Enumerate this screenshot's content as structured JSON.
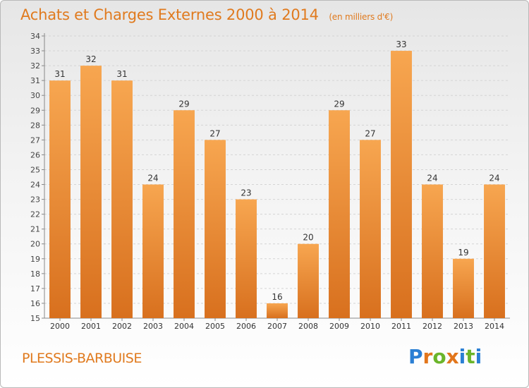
{
  "header": {
    "title": "Achats et Charges Externes 2000 à 2014",
    "subtitle": "(en milliers d'€)"
  },
  "footer": {
    "place": "PLESSIS-BARBUISE",
    "logo": {
      "letters": [
        "P",
        "r",
        "o",
        "x",
        "i",
        "t",
        "i"
      ],
      "colors": [
        "#2a7fd4",
        "#e2761b",
        "#6bb52a",
        "#e2761b",
        "#2a7fd4",
        "#6bb52a",
        "#2a7fd4"
      ]
    }
  },
  "colors": {
    "bar_light": "#f7a650",
    "bar_dark": "#d8701e",
    "label": "#333333"
  },
  "chart_data": {
    "type": "bar",
    "title": "Achats et Charges Externes 2000 à 2014",
    "subtitle": "(en milliers d'€)",
    "categories": [
      "2000",
      "2001",
      "2002",
      "2003",
      "2004",
      "2005",
      "2006",
      "2007",
      "2008",
      "2009",
      "2010",
      "2011",
      "2012",
      "2013",
      "2014"
    ],
    "values": [
      31,
      32,
      31,
      24,
      29,
      27,
      23,
      16,
      20,
      29,
      27,
      33,
      24,
      19,
      24
    ],
    "ylim": [
      15,
      34
    ],
    "yticks": [
      15,
      16,
      17,
      18,
      19,
      20,
      21,
      22,
      23,
      24,
      25,
      26,
      27,
      28,
      29,
      30,
      31,
      32,
      33,
      34
    ],
    "grid": true,
    "data_labels": true
  }
}
